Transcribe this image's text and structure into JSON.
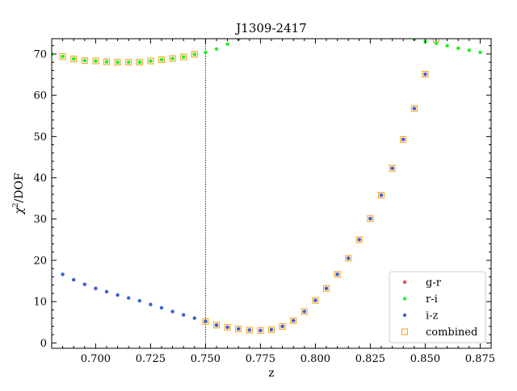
{
  "chart_data": {
    "type": "scatter",
    "title": "J1309-2417",
    "xlabel": "z",
    "ylabel_base": "χ",
    "ylabel_sup": "2",
    "ylabel_rest": "/DOF",
    "xlim": [
      0.68,
      0.88
    ],
    "ylim": [
      -1.3,
      73.7
    ],
    "x_ticks": [
      0.7,
      0.725,
      0.75,
      0.775,
      0.8,
      0.825,
      0.85,
      0.875
    ],
    "x_tick_labels": [
      "0.700",
      "0.725",
      "0.750",
      "0.775",
      "0.800",
      "0.825",
      "0.850",
      "0.875"
    ],
    "y_ticks": [
      0,
      10,
      20,
      30,
      40,
      50,
      60,
      70
    ],
    "y_tick_labels": [
      "0",
      "10",
      "20",
      "30",
      "40",
      "50",
      "60",
      "70"
    ],
    "vline_x": 0.75,
    "legend_position": "lower-right",
    "grid": false,
    "series": [
      {
        "name": "g-r",
        "color": "#d9534f",
        "marker": "dot",
        "x": [
          0.75,
          0.755,
          0.76,
          0.765,
          0.77,
          0.775,
          0.78,
          0.785,
          0.79,
          0.795,
          0.8,
          0.805,
          0.81,
          0.815,
          0.82,
          0.825,
          0.83,
          0.835,
          0.84,
          0.845,
          0.85
        ],
        "y": [
          5.2,
          4.3,
          3.8,
          3.4,
          3.1,
          3.0,
          3.2,
          4.0,
          5.4,
          7.6,
          10.3,
          13.2,
          16.6,
          20.5,
          25.0,
          30.1,
          35.8,
          42.3,
          49.3,
          56.8,
          65.1
        ]
      },
      {
        "name": "r-i",
        "color": "#1ef01e",
        "marker": "dot",
        "x": [
          0.68,
          0.685,
          0.69,
          0.695,
          0.7,
          0.705,
          0.71,
          0.715,
          0.72,
          0.725,
          0.73,
          0.735,
          0.74,
          0.745,
          0.75,
          0.755,
          0.76,
          0.765,
          0.845,
          0.85,
          0.855,
          0.86,
          0.865,
          0.87,
          0.875
        ],
        "y": [
          69.9,
          69.4,
          68.8,
          68.4,
          68.3,
          68.1,
          68.0,
          68.0,
          68.0,
          68.3,
          68.6,
          68.9,
          69.3,
          69.9,
          70.4,
          71.2,
          72.4,
          73.6,
          73.6,
          73.0,
          72.6,
          72.0,
          71.4,
          70.9,
          70.4
        ]
      },
      {
        "name": "i-z",
        "color": "#3d5fd1",
        "marker": "dot",
        "x": [
          0.685,
          0.69,
          0.695,
          0.7,
          0.705,
          0.71,
          0.715,
          0.72,
          0.725,
          0.73,
          0.735,
          0.74,
          0.745,
          0.75,
          0.755,
          0.76,
          0.765,
          0.77,
          0.775,
          0.78,
          0.785,
          0.79,
          0.795,
          0.8,
          0.805,
          0.81,
          0.815,
          0.82,
          0.825,
          0.83,
          0.835,
          0.84,
          0.845,
          0.85
        ],
        "y": [
          16.6,
          15.3,
          14.2,
          13.2,
          12.4,
          11.6,
          10.9,
          10.2,
          9.3,
          8.5,
          7.6,
          6.8,
          6.0,
          5.2,
          4.3,
          3.8,
          3.4,
          3.1,
          3.0,
          3.2,
          4.0,
          5.4,
          7.6,
          10.3,
          13.2,
          16.6,
          20.5,
          25.0,
          30.1,
          35.8,
          42.3,
          49.3,
          56.8,
          65.1
        ]
      },
      {
        "name": "combined",
        "color": "#f5a623",
        "marker": "open-square",
        "x": [
          0.685,
          0.69,
          0.695,
          0.7,
          0.705,
          0.71,
          0.715,
          0.72,
          0.725,
          0.73,
          0.735,
          0.74,
          0.745,
          0.75,
          0.755,
          0.76,
          0.765,
          0.77,
          0.775,
          0.78,
          0.785,
          0.79,
          0.795,
          0.8,
          0.805,
          0.81,
          0.815,
          0.82,
          0.825,
          0.83,
          0.835,
          0.84,
          0.845,
          0.85,
          0.855
        ],
        "y": [
          69.4,
          68.8,
          68.4,
          68.3,
          68.1,
          68.0,
          68.0,
          68.0,
          68.3,
          68.6,
          68.9,
          69.3,
          69.9,
          5.2,
          4.3,
          3.8,
          3.4,
          3.1,
          3.0,
          3.2,
          4.0,
          5.4,
          7.6,
          10.3,
          13.2,
          16.6,
          20.5,
          25.0,
          30.1,
          35.8,
          42.3,
          49.3,
          56.8,
          65.1,
          73.6
        ]
      }
    ]
  }
}
